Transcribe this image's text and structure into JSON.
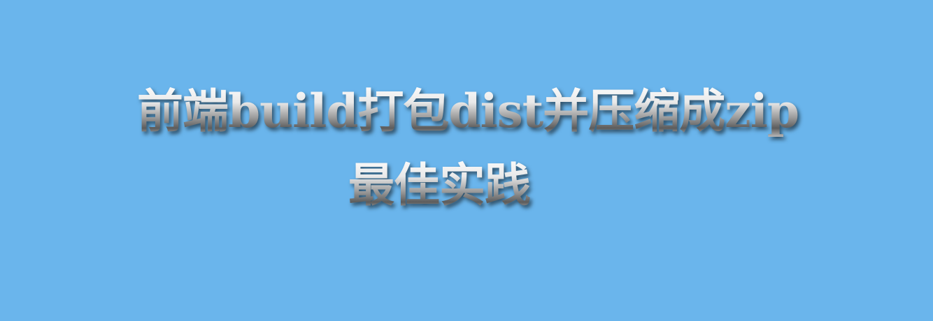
{
  "banner": {
    "title_line_1": "前端build打包dist并压缩成zip",
    "title_line_2": "最佳实践",
    "background_color": "#6ab5ec",
    "text_style": "metallic-silver-gradient-with-drop-shadow"
  }
}
